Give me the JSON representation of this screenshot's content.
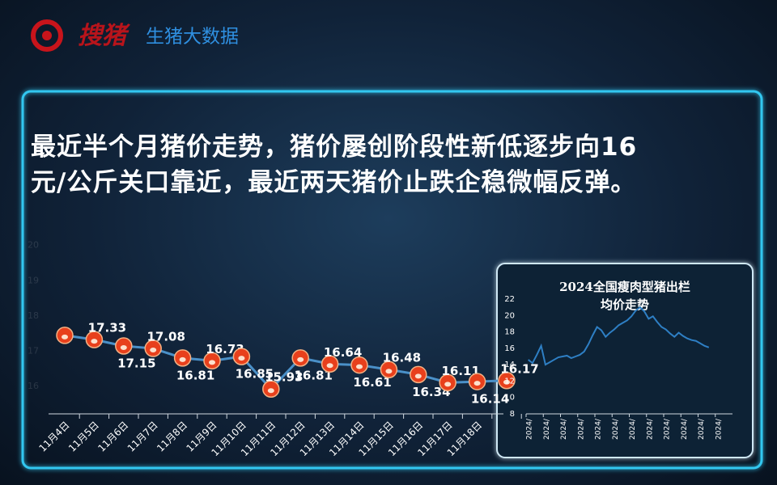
{
  "header": {
    "logo": "搜猪",
    "subtitle": "生猪大数据"
  },
  "headline": [
    "最近半个月猪价走势，猪价屡创阶段性新低逐步向16",
    "元/公斤关口靠近，最近两天猪价止跌企稳微幅反弹。"
  ],
  "chart_data": [
    {
      "type": "line",
      "categories": [
        "11月4日",
        "11月5日",
        "11月6日",
        "11月7日",
        "11月8日",
        "11月9日",
        "11月10日",
        "11月11日",
        "11月12日",
        "11月13日",
        "11月14日",
        "11月15日",
        "11月16日",
        "11月17日",
        "11月18日",
        null
      ],
      "series": [
        {
          "color": "#4a90c8",
          "marker_color": "#e8401c",
          "values": [
            17.45,
            17.33,
            17.15,
            17.08,
            16.81,
            16.73,
            16.85,
            15.93,
            16.81,
            16.64,
            16.61,
            16.48,
            16.34,
            16.11,
            16.14,
            16.17
          ]
        }
      ],
      "ylim": [
        15.5,
        21
      ],
      "yticks": [
        16,
        17,
        18,
        19,
        20
      ]
    },
    {
      "type": "line",
      "title": "2024全国瘦肉型猪出栏均价走势",
      "categories": [
        "2024/",
        null,
        null,
        null,
        "2024/",
        null,
        null,
        null,
        "2024/",
        null,
        null,
        null,
        "2024/",
        null,
        null,
        null,
        "2024/",
        null,
        null,
        null,
        "2024/",
        null,
        null,
        null,
        "2024/",
        null,
        null,
        null,
        "2024/",
        null,
        null,
        null,
        "2024/",
        null,
        null,
        null,
        "2024/",
        null,
        null,
        null,
        "2024/",
        null,
        null,
        null,
        "2024/",
        null,
        null,
        null
      ],
      "series": [
        {
          "color": "#2e7fc4",
          "values": [
            14.6,
            14.2,
            15.2,
            16.3,
            14.0,
            14.3,
            14.6,
            14.9,
            15.0,
            15.1,
            14.8,
            15.0,
            15.2,
            15.6,
            16.5,
            17.6,
            18.6,
            18.2,
            17.4,
            17.9,
            18.3,
            18.8,
            19.1,
            19.4,
            19.9,
            20.6,
            21.0,
            20.5,
            19.6,
            19.9,
            19.2,
            18.6,
            18.3,
            17.8,
            17.4,
            17.9,
            17.5,
            17.2,
            17.0,
            16.9,
            16.6,
            16.3,
            16.1,
            null,
            null,
            null,
            null,
            null
          ]
        }
      ],
      "ylim": [
        8,
        22
      ],
      "yticks": [
        8,
        10,
        12,
        14,
        16,
        18,
        20,
        22
      ]
    }
  ]
}
